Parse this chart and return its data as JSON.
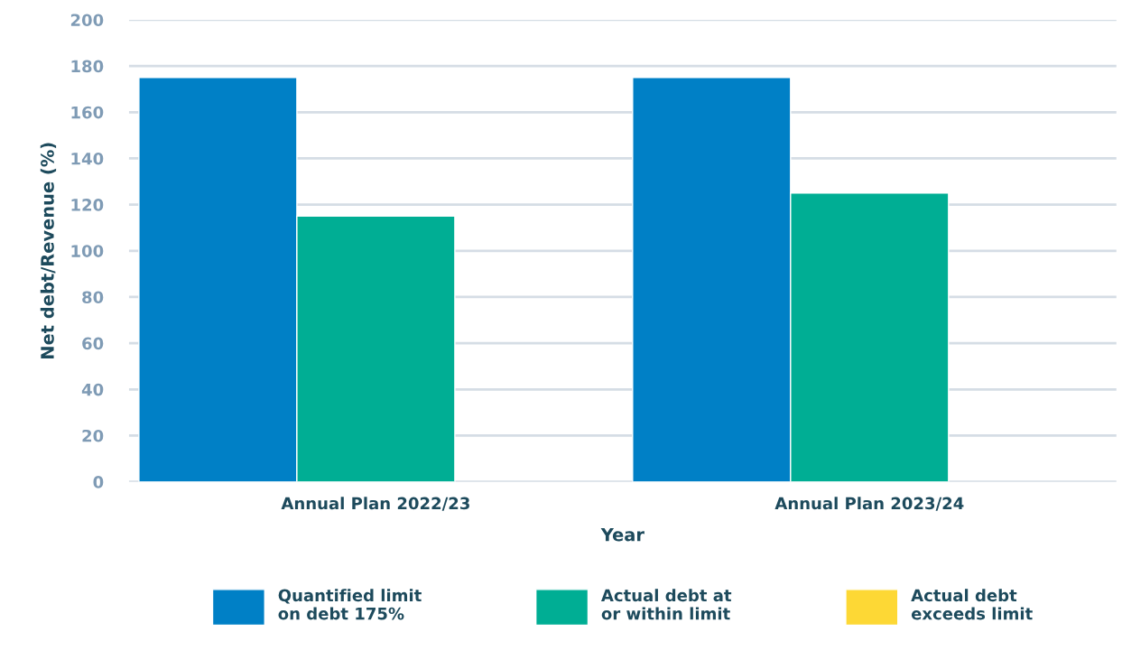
{
  "chart_data": {
    "type": "bar",
    "xlabel": "Year",
    "ylabel": "Net debt/Revenue (%)",
    "categories": [
      "Annual Plan 2022/23",
      "Annual Plan 2023/24"
    ],
    "series": [
      {
        "name": "Quantified limit\non debt 175%",
        "color": "#0080c6",
        "values": [
          175,
          175
        ]
      },
      {
        "name": "Actual debt at\nor within limit",
        "color": "#00ae94",
        "values": [
          115,
          125
        ]
      },
      {
        "name": "Actual debt\nexceeds limit",
        "color": "#fdd835",
        "values": [
          null,
          null
        ]
      }
    ],
    "ylim": [
      0,
      200
    ],
    "yticks": [
      0,
      20,
      40,
      60,
      80,
      100,
      120,
      140,
      160,
      180,
      200
    ],
    "grid": "y",
    "legend": "bottom"
  }
}
